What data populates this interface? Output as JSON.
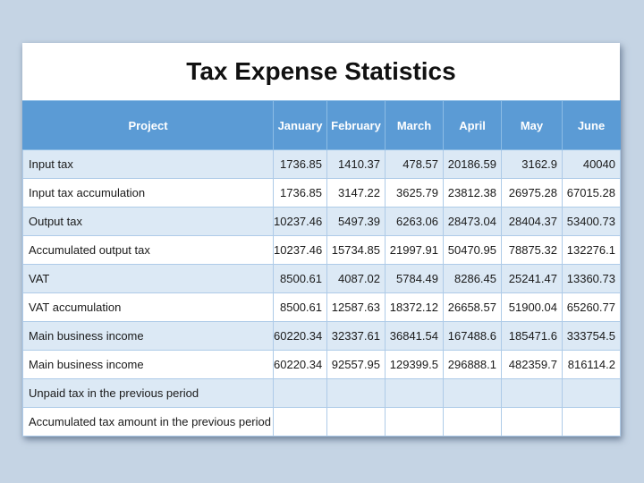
{
  "title": "Tax Expense Statistics",
  "table": {
    "columns": [
      "Project",
      "January",
      "February",
      "March",
      "April",
      "May",
      "June"
    ],
    "rows": [
      {
        "label": "Input tax",
        "values": [
          "1736.85",
          "1410.37",
          "478.57",
          "20186.59",
          "3162.9",
          "40040"
        ]
      },
      {
        "label": "Input tax accumulation",
        "values": [
          "1736.85",
          "3147.22",
          "3625.79",
          "23812.38",
          "26975.28",
          "67015.28"
        ]
      },
      {
        "label": "Output tax",
        "values": [
          "10237.46",
          "5497.39",
          "6263.06",
          "28473.04",
          "28404.37",
          "53400.73"
        ]
      },
      {
        "label": "Accumulated output tax",
        "values": [
          "10237.46",
          "15734.85",
          "21997.91",
          "50470.95",
          "78875.32",
          "132276.1"
        ]
      },
      {
        "label": "VAT",
        "values": [
          "8500.61",
          "4087.02",
          "5784.49",
          "8286.45",
          "25241.47",
          "13360.73"
        ]
      },
      {
        "label": "VAT accumulation",
        "values": [
          "8500.61",
          "12587.63",
          "18372.12",
          "26658.57",
          "51900.04",
          "65260.77"
        ]
      },
      {
        "label": "Main business income",
        "values": [
          "60220.34",
          "32337.61",
          "36841.54",
          "167488.6",
          "185471.6",
          "333754.5"
        ]
      },
      {
        "label": "Main business income",
        "values": [
          "60220.34",
          "92557.95",
          "129399.5",
          "296888.1",
          "482359.7",
          "816114.2"
        ]
      },
      {
        "label": "Unpaid tax in the previous period",
        "values": [
          "",
          "",
          "",
          "",
          "",
          ""
        ]
      },
      {
        "label": "Accumulated tax amount in the previous period",
        "values": [
          "",
          "",
          "",
          "",
          "",
          ""
        ]
      }
    ]
  },
  "colors": {
    "page_bg": "#C5D4E4",
    "header_bg": "#5B9BD5",
    "header_text": "#FFFFFF",
    "row_alt_bg": "#DCE9F5",
    "row_bg": "#FFFFFF",
    "cell_text": "#1A1A1A"
  }
}
